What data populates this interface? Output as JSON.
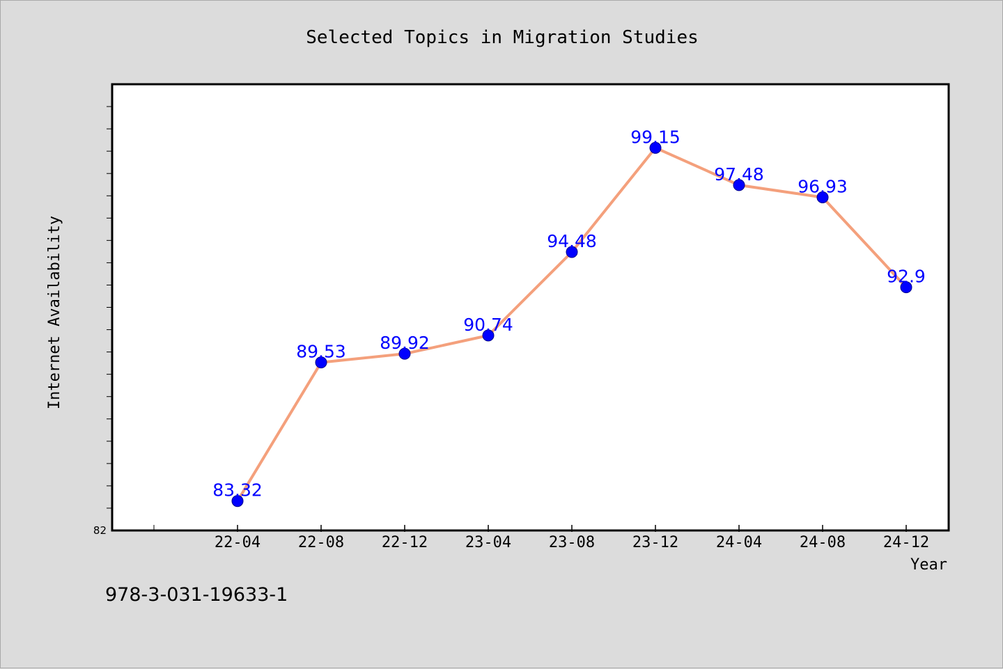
{
  "chart_data": {
    "type": "line",
    "title": "Selected Topics in Migration Studies",
    "xlabel": "Year",
    "ylabel": "Internet Availability",
    "categories": [
      "22-04",
      "22-08",
      "22-12",
      "23-04",
      "23-08",
      "23-12",
      "24-04",
      "24-08",
      "24-12"
    ],
    "series": [
      {
        "values": [
          83.32,
          89.53,
          89.92,
          90.74,
          94.48,
          99.15,
          97.48,
          96.93,
          92.9
        ],
        "data_labels": [
          "83.32",
          "89.53",
          "89.92",
          "90.74",
          "94.48",
          "99.15",
          "97.48",
          "96.93",
          "92.9"
        ]
      }
    ],
    "ylim": [
      82,
      102
    ],
    "y_tick_labels": [
      "82"
    ],
    "y_minor_tick_step": 1,
    "grid": false,
    "legend": false,
    "colors": {
      "line": "#f4a07c",
      "marker": "#0000ff",
      "data_label": "#0000ff",
      "plot_background": "#ffffff",
      "page_background": "#dcdcdc"
    }
  },
  "footer": {
    "isbn": "978-3-031-19633-1"
  }
}
